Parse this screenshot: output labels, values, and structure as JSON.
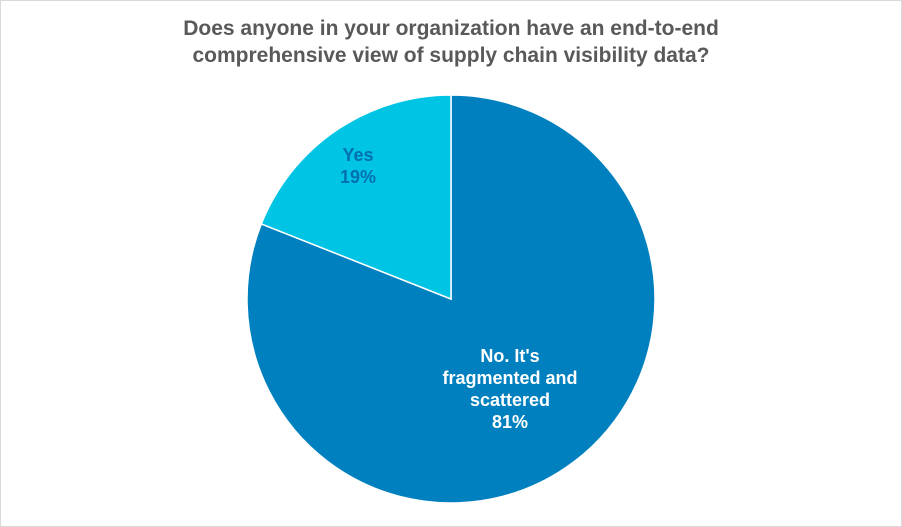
{
  "chart_data": {
    "type": "pie",
    "title_lines": [
      "Does anyone in your organization have an end-to-end",
      "comprehensive view of supply chain visibility data?"
    ],
    "start_angle_deg": 0,
    "direction": "clockwise",
    "slices": [
      {
        "name": "No. It's fragmented and scattered",
        "label_lines": [
          "No. It's",
          "fragmented and",
          "scattered"
        ],
        "value": 81,
        "value_label": "81%",
        "color": "#0080BF",
        "label_color": "#FFFFFF"
      },
      {
        "name": "Yes",
        "label_lines": [
          "Yes"
        ],
        "value": 19,
        "value_label": "19%",
        "color": "#00C4E3",
        "label_color": "#0070B0"
      }
    ]
  }
}
